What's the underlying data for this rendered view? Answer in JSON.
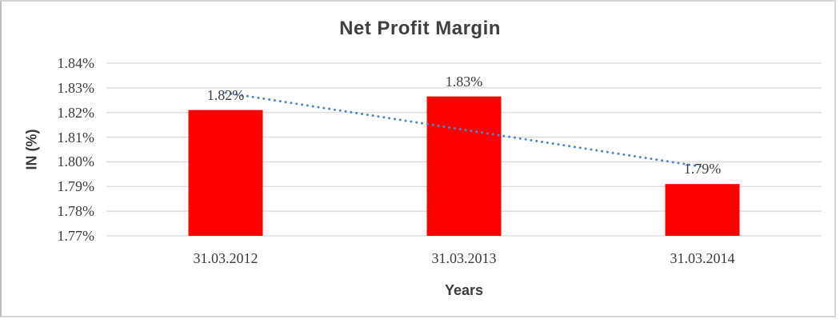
{
  "chart_data": {
    "type": "bar",
    "title": "Net Profit Margin",
    "xlabel": "Years",
    "ylabel": "IN (%)",
    "categories": [
      "31.03.2012",
      "31.03.2013",
      "31.03.2014"
    ],
    "values": [
      1.821,
      1.8265,
      1.791
    ],
    "data_labels": [
      "1.82%",
      "1.83%",
      "1.79%"
    ],
    "ylim": [
      1.77,
      1.84
    ],
    "ytick_step": 0.01,
    "ytick_labels": [
      "1.84%",
      "1.83%",
      "1.82%",
      "1.81%",
      "1.80%",
      "1.79%",
      "1.78%",
      "1.77%"
    ],
    "grid": true,
    "legend": "none",
    "trendline": {
      "type": "linear",
      "line_style": "dotted",
      "start_value": 1.828,
      "end_value": 1.798
    }
  },
  "colors": {
    "bar": "#FF0000",
    "trendline": "#4F87C9",
    "gridline": "#D9D9D9",
    "text": "#3B3B3B",
    "frame_border": "#D5D5D5"
  }
}
